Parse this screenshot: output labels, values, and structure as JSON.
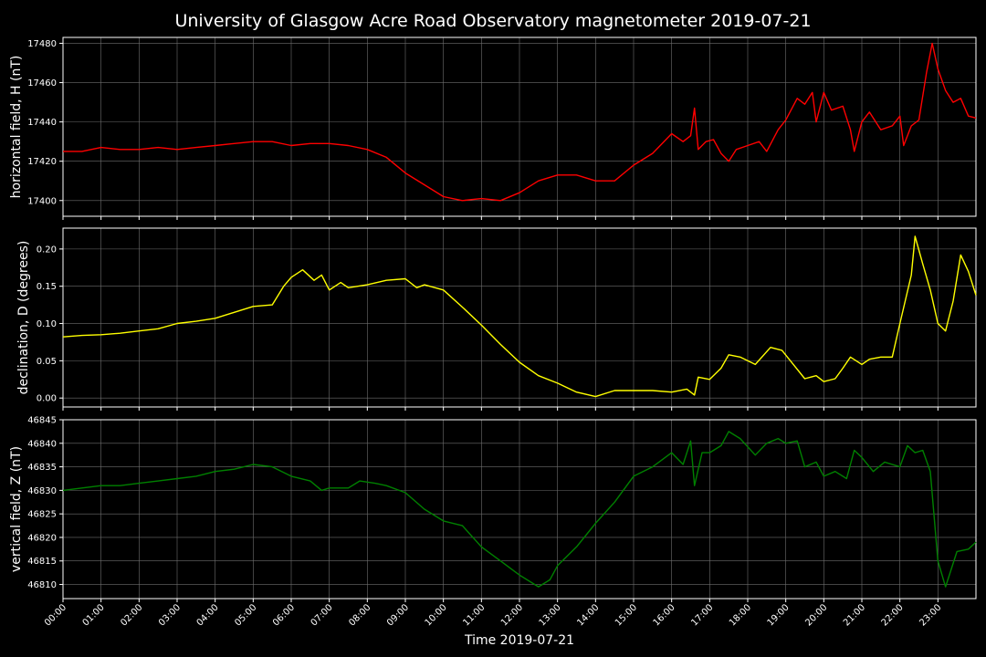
{
  "title": "University of Glasgow Acre Road Observatory magnetometer 2019-07-21",
  "xlabel": "Time 2019-07-21",
  "x_ticks": [
    "00:00",
    "01:00",
    "02:00",
    "03:00",
    "04:00",
    "05:00",
    "06:00",
    "07:00",
    "08:00",
    "09:00",
    "10:00",
    "11:00",
    "12:00",
    "13:00",
    "14:00",
    "15:00",
    "16:00",
    "17:00",
    "18:00",
    "19:00",
    "20:00",
    "21:00",
    "22:00",
    "23:00"
  ],
  "colors": {
    "background": "#000000",
    "grid": "#6e6e6e",
    "text": "#ffffff",
    "h": "#ff0000",
    "d": "#ffff00",
    "z": "#008000"
  },
  "chart_data": [
    {
      "type": "line",
      "ylabel": "horizontal field, H (nT)",
      "x_unit": "hour of day",
      "xlim": [
        0,
        24
      ],
      "ylim": [
        17392,
        17483
      ],
      "y_ticks": [
        17400,
        17420,
        17440,
        17460,
        17480
      ],
      "grid": true,
      "series": [
        {
          "color": "#ff0000",
          "points": [
            [
              0,
              17425
            ],
            [
              0.5,
              17425
            ],
            [
              1,
              17427
            ],
            [
              1.5,
              17426
            ],
            [
              2,
              17426
            ],
            [
              2.5,
              17427
            ],
            [
              3,
              17426
            ],
            [
              3.5,
              17427
            ],
            [
              4,
              17428
            ],
            [
              4.5,
              17429
            ],
            [
              5,
              17430
            ],
            [
              5.5,
              17430
            ],
            [
              6,
              17428
            ],
            [
              6.5,
              17429
            ],
            [
              7,
              17429
            ],
            [
              7.5,
              17428
            ],
            [
              8,
              17426
            ],
            [
              8.5,
              17422
            ],
            [
              9,
              17414
            ],
            [
              9.5,
              17408
            ],
            [
              10,
              17402
            ],
            [
              10.5,
              17400
            ],
            [
              11,
              17401
            ],
            [
              11.5,
              17400
            ],
            [
              12,
              17404
            ],
            [
              12.5,
              17410
            ],
            [
              13,
              17413
            ],
            [
              13.5,
              17413
            ],
            [
              14,
              17410
            ],
            [
              14.5,
              17410
            ],
            [
              15,
              17418
            ],
            [
              15.5,
              17424
            ],
            [
              16,
              17434
            ],
            [
              16.3,
              17430
            ],
            [
              16.5,
              17433
            ],
            [
              16.6,
              17447
            ],
            [
              16.7,
              17426
            ],
            [
              16.9,
              17430
            ],
            [
              17.1,
              17431
            ],
            [
              17.3,
              17424
            ],
            [
              17.5,
              17420
            ],
            [
              17.7,
              17426
            ],
            [
              18,
              17428
            ],
            [
              18.3,
              17430
            ],
            [
              18.5,
              17425
            ],
            [
              18.8,
              17436
            ],
            [
              19,
              17441
            ],
            [
              19.3,
              17452
            ],
            [
              19.5,
              17449
            ],
            [
              19.7,
              17455
            ],
            [
              19.8,
              17440
            ],
            [
              20,
              17455
            ],
            [
              20.2,
              17446
            ],
            [
              20.5,
              17448
            ],
            [
              20.7,
              17436
            ],
            [
              20.8,
              17425
            ],
            [
              21,
              17440
            ],
            [
              21.2,
              17445
            ],
            [
              21.5,
              17436
            ],
            [
              21.8,
              17438
            ],
            [
              22,
              17443
            ],
            [
              22.1,
              17428
            ],
            [
              22.3,
              17438
            ],
            [
              22.5,
              17441
            ],
            [
              22.7,
              17465
            ],
            [
              22.85,
              17480
            ],
            [
              23,
              17467
            ],
            [
              23.2,
              17456
            ],
            [
              23.4,
              17450
            ],
            [
              23.6,
              17452
            ],
            [
              23.8,
              17443
            ],
            [
              24,
              17442
            ]
          ]
        }
      ]
    },
    {
      "type": "line",
      "ylabel": "declination, D (degrees)",
      "x_unit": "hour of day",
      "xlim": [
        0,
        24
      ],
      "ylim": [
        -0.012,
        0.228
      ],
      "y_ticks": [
        0.0,
        0.05,
        0.1,
        0.15,
        0.2
      ],
      "y_tick_labels": [
        "0.00",
        "0.05",
        "0.10",
        "0.15",
        "0.20"
      ],
      "grid": true,
      "series": [
        {
          "color": "#ffff00",
          "points": [
            [
              0,
              0.082
            ],
            [
              0.5,
              0.084
            ],
            [
              1,
              0.085
            ],
            [
              1.5,
              0.087
            ],
            [
              2,
              0.09
            ],
            [
              2.5,
              0.093
            ],
            [
              3,
              0.1
            ],
            [
              3.5,
              0.103
            ],
            [
              4,
              0.107
            ],
            [
              4.5,
              0.115
            ],
            [
              5,
              0.123
            ],
            [
              5.5,
              0.125
            ],
            [
              5.8,
              0.15
            ],
            [
              6,
              0.162
            ],
            [
              6.3,
              0.172
            ],
            [
              6.6,
              0.158
            ],
            [
              6.8,
              0.165
            ],
            [
              7,
              0.145
            ],
            [
              7.3,
              0.155
            ],
            [
              7.5,
              0.148
            ],
            [
              8,
              0.152
            ],
            [
              8.5,
              0.158
            ],
            [
              9,
              0.16
            ],
            [
              9.3,
              0.148
            ],
            [
              9.5,
              0.152
            ],
            [
              10,
              0.145
            ],
            [
              10.5,
              0.122
            ],
            [
              11,
              0.098
            ],
            [
              11.5,
              0.072
            ],
            [
              12,
              0.048
            ],
            [
              12.5,
              0.03
            ],
            [
              13,
              0.02
            ],
            [
              13.5,
              0.008
            ],
            [
              14,
              0.002
            ],
            [
              14.5,
              0.01
            ],
            [
              15,
              0.01
            ],
            [
              15.5,
              0.01
            ],
            [
              16,
              0.008
            ],
            [
              16.4,
              0.012
            ],
            [
              16.6,
              0.004
            ],
            [
              16.7,
              0.028
            ],
            [
              17,
              0.025
            ],
            [
              17.3,
              0.04
            ],
            [
              17.5,
              0.058
            ],
            [
              17.8,
              0.055
            ],
            [
              18.2,
              0.045
            ],
            [
              18.6,
              0.068
            ],
            [
              18.9,
              0.064
            ],
            [
              19.2,
              0.045
            ],
            [
              19.5,
              0.026
            ],
            [
              19.8,
              0.03
            ],
            [
              20,
              0.022
            ],
            [
              20.3,
              0.026
            ],
            [
              20.5,
              0.04
            ],
            [
              20.7,
              0.055
            ],
            [
              21,
              0.045
            ],
            [
              21.2,
              0.052
            ],
            [
              21.5,
              0.055
            ],
            [
              21.8,
              0.055
            ],
            [
              22,
              0.1
            ],
            [
              22.3,
              0.165
            ],
            [
              22.4,
              0.217
            ],
            [
              22.6,
              0.18
            ],
            [
              22.8,
              0.145
            ],
            [
              23,
              0.1
            ],
            [
              23.2,
              0.09
            ],
            [
              23.4,
              0.13
            ],
            [
              23.6,
              0.192
            ],
            [
              23.8,
              0.17
            ],
            [
              24,
              0.138
            ]
          ]
        }
      ]
    },
    {
      "type": "line",
      "ylabel": "vertical field, Z (nT)",
      "x_unit": "hour of day",
      "xlim": [
        0,
        24
      ],
      "ylim": [
        46807,
        46845
      ],
      "y_ticks": [
        46810,
        46815,
        46820,
        46825,
        46830,
        46835,
        46840,
        46845
      ],
      "grid": true,
      "series": [
        {
          "color": "#008000",
          "points": [
            [
              0,
              46830
            ],
            [
              0.5,
              46830.5
            ],
            [
              1,
              46831
            ],
            [
              1.5,
              46831
            ],
            [
              2,
              46831.5
            ],
            [
              2.5,
              46832
            ],
            [
              3,
              46832.5
            ],
            [
              3.5,
              46833
            ],
            [
              4,
              46834
            ],
            [
              4.5,
              46834.5
            ],
            [
              5,
              46835.5
            ],
            [
              5.5,
              46835
            ],
            [
              6,
              46833
            ],
            [
              6.5,
              46832
            ],
            [
              6.8,
              46830
            ],
            [
              7,
              46830.5
            ],
            [
              7.5,
              46830.5
            ],
            [
              7.8,
              46832
            ],
            [
              8.2,
              46831.5
            ],
            [
              8.5,
              46831
            ],
            [
              9,
              46829.5
            ],
            [
              9.5,
              46826
            ],
            [
              10,
              46823.5
            ],
            [
              10.5,
              46822.5
            ],
            [
              11,
              46818
            ],
            [
              11.5,
              46815
            ],
            [
              12,
              46812
            ],
            [
              12.5,
              46809.5
            ],
            [
              12.8,
              46811
            ],
            [
              13,
              46814
            ],
            [
              13.5,
              46818
            ],
            [
              14,
              46823
            ],
            [
              14.5,
              46827.5
            ],
            [
              15,
              46833
            ],
            [
              15.5,
              46835
            ],
            [
              16,
              46838
            ],
            [
              16.3,
              46835.5
            ],
            [
              16.5,
              46840.5
            ],
            [
              16.6,
              46831
            ],
            [
              16.8,
              46838
            ],
            [
              17,
              46838
            ],
            [
              17.3,
              46839.5
            ],
            [
              17.5,
              46842.5
            ],
            [
              17.8,
              46841
            ],
            [
              18.2,
              46837.5
            ],
            [
              18.5,
              46840
            ],
            [
              18.8,
              46841
            ],
            [
              19,
              46840
            ],
            [
              19.3,
              46840.5
            ],
            [
              19.5,
              46835
            ],
            [
              19.8,
              46836
            ],
            [
              20,
              46833
            ],
            [
              20.3,
              46834
            ],
            [
              20.6,
              46832.5
            ],
            [
              20.8,
              46838.5
            ],
            [
              21,
              46837
            ],
            [
              21.3,
              46834
            ],
            [
              21.6,
              46836
            ],
            [
              22,
              46835
            ],
            [
              22.2,
              46839.5
            ],
            [
              22.4,
              46838
            ],
            [
              22.6,
              46838.5
            ],
            [
              22.8,
              46834
            ],
            [
              23,
              46815
            ],
            [
              23.2,
              46809.5
            ],
            [
              23.5,
              46817
            ],
            [
              23.8,
              46817.5
            ],
            [
              24,
              46819
            ]
          ]
        }
      ]
    }
  ]
}
